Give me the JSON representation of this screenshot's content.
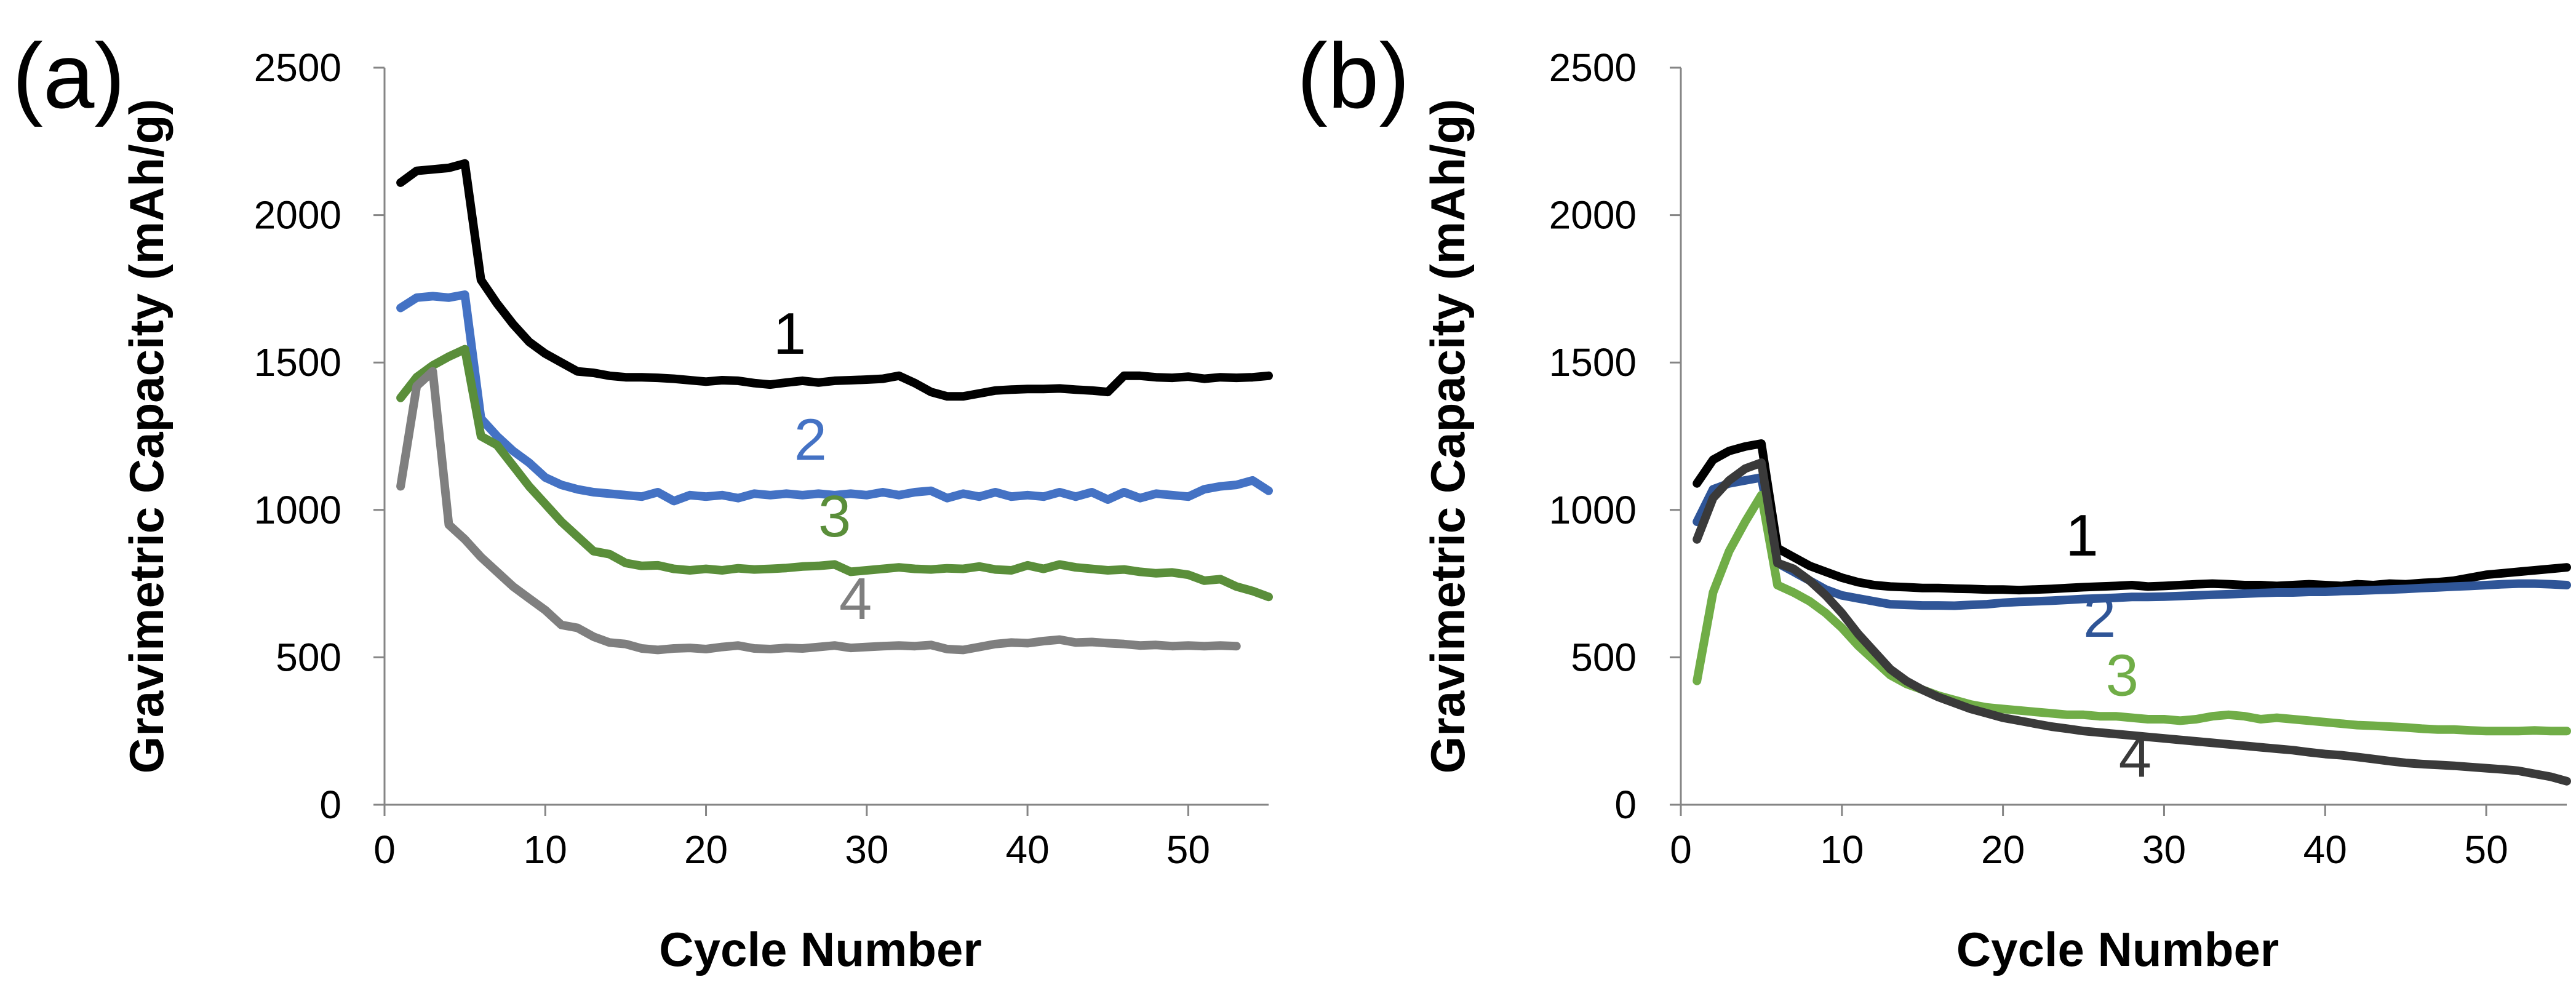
{
  "chart_data": [
    {
      "panel_label": "(a)",
      "type": "line",
      "xlabel": "Cycle Number",
      "ylabel": "Gravimetric Capacity (mAh/g)",
      "xlim": [
        0,
        55
      ],
      "ylim": [
        0,
        2500
      ],
      "xticks": [
        0,
        10,
        20,
        30,
        40,
        50
      ],
      "yticks": [
        0,
        500,
        1000,
        1500,
        2000,
        2500
      ],
      "grid": false,
      "series": [
        {
          "name": "1",
          "label": "1",
          "label_x": 25.2,
          "label_y": 1530,
          "color": "#000000",
          "x": [
            1,
            2,
            3,
            4,
            5,
            6,
            7,
            8,
            9,
            10,
            11,
            12,
            13,
            14,
            15,
            16,
            17,
            18,
            19,
            20,
            21,
            22,
            23,
            24,
            25,
            26,
            27,
            28,
            29,
            30,
            31,
            32,
            33,
            34,
            35,
            36,
            37,
            38,
            39,
            40,
            41,
            42,
            43,
            44,
            45,
            46,
            47,
            48,
            49,
            50,
            51,
            52,
            53,
            54,
            55
          ],
          "y": [
            2110,
            2150,
            2155,
            2160,
            2175,
            1780,
            1700,
            1630,
            1570,
            1530,
            1500,
            1470,
            1465,
            1455,
            1450,
            1450,
            1448,
            1445,
            1440,
            1435,
            1440,
            1438,
            1430,
            1425,
            1432,
            1438,
            1432,
            1438,
            1440,
            1442,
            1445,
            1455,
            1430,
            1400,
            1385,
            1385,
            1395,
            1405,
            1408,
            1410,
            1410,
            1412,
            1408,
            1405,
            1400,
            1455,
            1455,
            1450,
            1448,
            1452,
            1445,
            1450,
            1448,
            1450,
            1455
          ]
        },
        {
          "name": "2",
          "label": "2",
          "label_x": 26.5,
          "label_y": 1170,
          "color": "#4472C4",
          "x": [
            1,
            2,
            3,
            4,
            5,
            6,
            7,
            8,
            9,
            10,
            11,
            12,
            13,
            14,
            15,
            16,
            17,
            18,
            19,
            20,
            21,
            22,
            23,
            24,
            25,
            26,
            27,
            28,
            29,
            30,
            31,
            32,
            33,
            34,
            35,
            36,
            37,
            38,
            39,
            40,
            41,
            42,
            43,
            44,
            45,
            46,
            47,
            48,
            49,
            50,
            51,
            52,
            53,
            54,
            55
          ],
          "y": [
            1685,
            1720,
            1725,
            1720,
            1730,
            1310,
            1250,
            1200,
            1160,
            1110,
            1085,
            1070,
            1060,
            1055,
            1050,
            1045,
            1060,
            1030,
            1050,
            1045,
            1050,
            1040,
            1055,
            1050,
            1055,
            1050,
            1055,
            1050,
            1055,
            1050,
            1060,
            1050,
            1060,
            1065,
            1040,
            1055,
            1045,
            1060,
            1045,
            1050,
            1045,
            1060,
            1045,
            1060,
            1035,
            1060,
            1040,
            1055,
            1050,
            1045,
            1070,
            1080,
            1085,
            1100,
            1065
          ]
        },
        {
          "name": "3",
          "label": "3",
          "label_x": 28.0,
          "label_y": 910,
          "color": "#5A8E3A",
          "x": [
            1,
            2,
            3,
            4,
            5,
            6,
            7,
            8,
            9,
            10,
            11,
            12,
            13,
            14,
            15,
            16,
            17,
            18,
            19,
            20,
            21,
            22,
            23,
            24,
            25,
            26,
            27,
            28,
            29,
            30,
            31,
            32,
            33,
            34,
            35,
            36,
            37,
            38,
            39,
            40,
            41,
            42,
            43,
            44,
            45,
            46,
            47,
            48,
            49,
            50,
            51,
            52,
            53,
            54,
            55
          ],
          "y": [
            1380,
            1450,
            1490,
            1520,
            1545,
            1250,
            1220,
            1150,
            1080,
            1020,
            960,
            910,
            860,
            850,
            820,
            810,
            812,
            800,
            795,
            800,
            795,
            802,
            798,
            800,
            803,
            808,
            810,
            815,
            790,
            795,
            800,
            805,
            800,
            798,
            802,
            800,
            808,
            798,
            795,
            812,
            800,
            815,
            805,
            800,
            795,
            798,
            790,
            785,
            788,
            780,
            760,
            765,
            740,
            725,
            705
          ]
        },
        {
          "name": "4",
          "label": "4",
          "label_x": 29.3,
          "label_y": 630,
          "color": "#7F7F7F",
          "x": [
            1,
            2,
            3,
            4,
            5,
            6,
            7,
            8,
            9,
            10,
            11,
            12,
            13,
            14,
            15,
            16,
            17,
            18,
            19,
            20,
            21,
            22,
            23,
            24,
            25,
            26,
            27,
            28,
            29,
            30,
            31,
            32,
            33,
            34,
            35,
            36,
            37,
            38,
            39,
            40,
            41,
            42,
            43,
            44,
            45,
            46,
            47,
            48,
            49,
            50,
            51,
            52,
            53
          ],
          "y": [
            1080,
            1420,
            1470,
            950,
            900,
            840,
            790,
            740,
            700,
            660,
            610,
            600,
            570,
            550,
            545,
            530,
            525,
            530,
            532,
            528,
            535,
            540,
            530,
            528,
            532,
            530,
            535,
            540,
            532,
            535,
            538,
            540,
            538,
            542,
            528,
            525,
            535,
            545,
            550,
            548,
            555,
            560,
            550,
            552,
            548,
            545,
            540,
            542,
            538,
            540,
            538,
            540,
            538
          ]
        }
      ]
    },
    {
      "panel_label": "(b)",
      "type": "line",
      "xlabel": "Cycle Number",
      "ylabel": "Gravimetric Capacity (mAh/g)",
      "xlim": [
        0,
        55
      ],
      "ylim": [
        0,
        2500
      ],
      "xticks": [
        0,
        10,
        20,
        30,
        40,
        50
      ],
      "yticks": [
        0,
        500,
        1000,
        1500,
        2000,
        2500
      ],
      "grid": false,
      "series": [
        {
          "name": "1",
          "label": "1",
          "label_x": 24.9,
          "label_y": 845,
          "color": "#000000",
          "x": [
            1,
            2,
            3,
            4,
            5,
            6,
            7,
            8,
            9,
            10,
            11,
            12,
            13,
            14,
            15,
            16,
            17,
            18,
            19,
            20,
            21,
            22,
            23,
            24,
            25,
            26,
            27,
            28,
            29,
            30,
            31,
            32,
            33,
            34,
            35,
            36,
            37,
            38,
            39,
            40,
            41,
            42,
            43,
            44,
            45,
            46,
            47,
            48,
            49,
            50,
            51,
            52,
            53,
            54,
            55
          ],
          "y": [
            1090,
            1170,
            1200,
            1215,
            1225,
            870,
            840,
            810,
            790,
            770,
            755,
            745,
            740,
            738,
            735,
            735,
            733,
            732,
            730,
            730,
            728,
            730,
            732,
            735,
            738,
            740,
            742,
            745,
            740,
            742,
            745,
            748,
            750,
            748,
            745,
            745,
            742,
            745,
            748,
            745,
            742,
            748,
            745,
            750,
            748,
            752,
            755,
            760,
            770,
            780,
            785,
            790,
            795,
            800,
            805
          ]
        },
        {
          "name": "2",
          "label": "2",
          "label_x": 26.0,
          "label_y": 570,
          "color": "#2F5597",
          "x": [
            1,
            2,
            3,
            4,
            5,
            6,
            7,
            8,
            9,
            10,
            11,
            12,
            13,
            14,
            15,
            16,
            17,
            18,
            19,
            20,
            21,
            22,
            23,
            24,
            25,
            26,
            27,
            28,
            29,
            30,
            31,
            32,
            33,
            34,
            35,
            36,
            37,
            38,
            39,
            40,
            41,
            42,
            43,
            44,
            45,
            46,
            47,
            48,
            49,
            50,
            51,
            52,
            53,
            54,
            55
          ],
          "y": [
            960,
            1070,
            1090,
            1100,
            1110,
            820,
            790,
            760,
            730,
            710,
            700,
            690,
            680,
            678,
            676,
            676,
            675,
            678,
            680,
            685,
            688,
            690,
            692,
            695,
            698,
            700,
            702,
            705,
            705,
            706,
            708,
            710,
            712,
            714,
            716,
            718,
            720,
            720,
            722,
            722,
            725,
            726,
            728,
            730,
            732,
            735,
            737,
            740,
            742,
            745,
            748,
            750,
            750,
            748,
            745
          ]
        },
        {
          "name": "3",
          "label": "3",
          "label_x": 27.4,
          "label_y": 370,
          "color": "#70AD47",
          "x": [
            1,
            2,
            3,
            4,
            5,
            6,
            7,
            8,
            9,
            10,
            11,
            12,
            13,
            14,
            15,
            16,
            17,
            18,
            19,
            20,
            21,
            22,
            23,
            24,
            25,
            26,
            27,
            28,
            29,
            30,
            31,
            32,
            33,
            34,
            35,
            36,
            37,
            38,
            39,
            40,
            41,
            42,
            43,
            44,
            45,
            46,
            47,
            48,
            49,
            50,
            51,
            52,
            53,
            54,
            55
          ],
          "y": [
            420,
            720,
            860,
            960,
            1050,
            745,
            720,
            690,
            650,
            600,
            540,
            490,
            440,
            410,
            390,
            370,
            355,
            340,
            330,
            325,
            320,
            315,
            310,
            305,
            305,
            300,
            300,
            295,
            290,
            290,
            285,
            290,
            300,
            305,
            300,
            290,
            295,
            290,
            285,
            280,
            275,
            270,
            268,
            265,
            262,
            258,
            255,
            255,
            252,
            250,
            250,
            250,
            252,
            250,
            250
          ]
        },
        {
          "name": "4",
          "label": "4",
          "label_x": 28.2,
          "label_y": 95,
          "color": "#3A3A3A",
          "x": [
            1,
            2,
            3,
            4,
            5,
            6,
            7,
            8,
            9,
            10,
            11,
            12,
            13,
            14,
            15,
            16,
            17,
            18,
            19,
            20,
            21,
            22,
            23,
            24,
            25,
            26,
            27,
            28,
            29,
            30,
            31,
            32,
            33,
            34,
            35,
            36,
            37,
            38,
            39,
            40,
            41,
            42,
            43,
            44,
            45,
            46,
            47,
            48,
            49,
            50,
            51,
            52,
            53,
            54,
            55
          ],
          "y": [
            900,
            1040,
            1100,
            1140,
            1160,
            820,
            800,
            760,
            710,
            650,
            580,
            520,
            460,
            420,
            390,
            365,
            345,
            325,
            310,
            295,
            285,
            275,
            265,
            258,
            250,
            245,
            240,
            235,
            230,
            225,
            220,
            215,
            210,
            205,
            200,
            195,
            190,
            185,
            178,
            172,
            168,
            162,
            155,
            148,
            142,
            138,
            135,
            132,
            128,
            124,
            120,
            115,
            105,
            95,
            80
          ]
        }
      ]
    }
  ]
}
